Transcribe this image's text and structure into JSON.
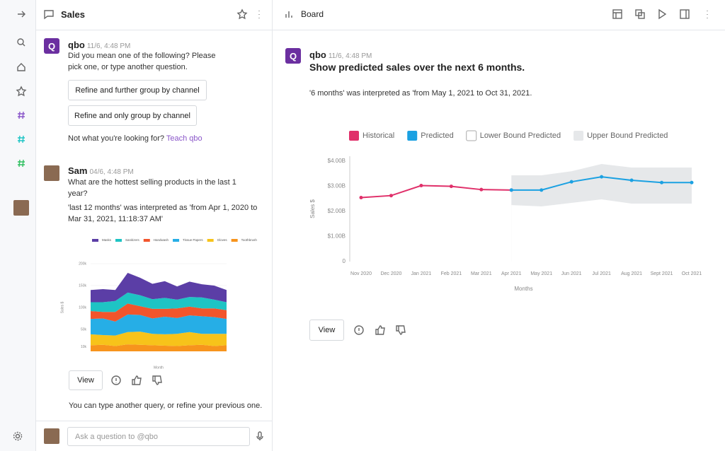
{
  "chat": {
    "title": "Sales",
    "messages": [
      {
        "avatar": "Q",
        "author": "qbo",
        "time": "11/6, 4:48 PM",
        "text": "Did you mean one of the following? Please pick one, or type another question.",
        "options": [
          "Refine and further group by channel",
          "Refine and only group by channel"
        ],
        "footer": "Not what you're looking for?",
        "link": "Teach qbo"
      },
      {
        "author": "Sam",
        "time": "04/6, 4:48 PM",
        "text": "What are the hottest selling products in the last 1 year?",
        "interpretation": "'last 12 months' was interpreted as 'from Apr 1, 2020 to Mar 31, 2021, 11:18:37 AM'",
        "view_button": "View"
      }
    ],
    "hint": "You can type another query, or refine your previous one.",
    "input_placeholder": "Ask a question to @qbo"
  },
  "board": {
    "title": "Board",
    "message": {
      "avatar": "Q",
      "author": "qbo",
      "time": "11/6, 4:48 PM",
      "question": "Show predicted sales over the next 6 months.",
      "interpretation": "'6 months' was interpreted as 'from May 1, 2021 to Oct 31, 2021.",
      "view_button": "View"
    }
  },
  "chart_data": [
    {
      "type": "area",
      "stacked": true,
      "ylabel": "Sales $",
      "xlabel": "Month",
      "categories": [
        null,
        null,
        null,
        null,
        null,
        null,
        null,
        null,
        null,
        null,
        null,
        null
      ],
      "series": [
        {
          "name": "Masks",
          "color": "#5b3ea6",
          "values": [
            28,
            30,
            25,
            45,
            40,
            35,
            38,
            30,
            35,
            30,
            32,
            28
          ]
        },
        {
          "name": "Sanitizers",
          "color": "#1ec4c4",
          "values": [
            20,
            22,
            25,
            25,
            25,
            22,
            25,
            20,
            22,
            25,
            20,
            18
          ]
        },
        {
          "name": "Handwash",
          "color": "#f2552c",
          "values": [
            18,
            15,
            22,
            25,
            20,
            22,
            18,
            22,
            20,
            18,
            20,
            20
          ]
        },
        {
          "name": "Tissue Papers",
          "color": "#26aee6",
          "values": [
            35,
            38,
            32,
            40,
            38,
            35,
            40,
            36,
            38,
            40,
            38,
            34
          ]
        },
        {
          "name": "Gloves",
          "color": "#f7c31a",
          "values": [
            25,
            22,
            24,
            28,
            30,
            26,
            26,
            28,
            30,
            25,
            28,
            26
          ]
        },
        {
          "name": "Toothbrush",
          "color": "#f7941d",
          "values": [
            14,
            15,
            12,
            16,
            15,
            14,
            13,
            12,
            14,
            15,
            12,
            14
          ]
        }
      ],
      "ylim": [
        0,
        200
      ],
      "yticks": [
        {
          "value": 10,
          "label": "10k"
        },
        {
          "value": 50,
          "label": "50k"
        },
        {
          "value": 100,
          "label": "100k"
        },
        {
          "value": 150,
          "label": "150k"
        },
        {
          "value": 200,
          "label": "200k"
        }
      ],
      "grid": true
    },
    {
      "type": "line",
      "ylabel": "Sales $",
      "xlabel": "Months",
      "categories": [
        "Nov 2020",
        "Dec 2020",
        "Jan 2021",
        "Feb 2021",
        "Mar 2021",
        "Apr 2021",
        "May 2021",
        "Jun 2021",
        "Jul 2021",
        "Aug 2021",
        "Sept 2021",
        "Oct 2021"
      ],
      "series": [
        {
          "name": "Historical",
          "color": "#e0306a",
          "values": [
            2.55,
            2.63,
            3.03,
            3.0,
            2.87,
            2.85,
            null,
            null,
            null,
            null,
            null,
            null
          ]
        },
        {
          "name": "Predicted",
          "color": "#1ba1e2",
          "values": [
            null,
            null,
            null,
            null,
            null,
            2.85,
            2.85,
            3.18,
            3.38,
            3.24,
            3.15,
            3.15
          ]
        },
        {
          "name": "Lower Bound Predicted",
          "type": "area",
          "color": "#ffffff",
          "values": [
            null,
            null,
            null,
            null,
            null,
            2.25,
            2.2,
            2.34,
            2.48,
            2.31,
            2.31,
            2.31
          ]
        },
        {
          "name": "Upper Bound Predicted",
          "type": "area",
          "color": "#e6e8ea",
          "values": [
            null,
            null,
            null,
            null,
            null,
            3.44,
            3.44,
            3.6,
            3.89,
            3.75,
            3.75,
            3.75
          ]
        }
      ],
      "ylim": [
        0,
        4.2
      ],
      "yticks": [
        0,
        {
          "value": 1,
          "label": "$1.00B"
        },
        {
          "value": 2,
          "label": "$2.00B"
        },
        {
          "value": 3,
          "label": "$3.00B"
        },
        {
          "value": 4,
          "label": "$4.00B"
        }
      ],
      "grid": false
    }
  ]
}
